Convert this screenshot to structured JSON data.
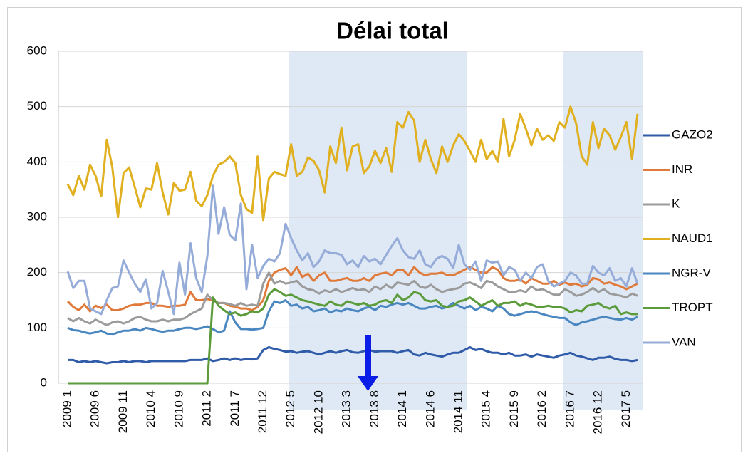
{
  "chart_data": {
    "type": "line",
    "title": "Délai total",
    "grid": true,
    "legend": "right",
    "ylim": [
      0,
      600
    ],
    "yticks": [
      0,
      100,
      200,
      300,
      400,
      500,
      600
    ],
    "categories": [
      "2009 1",
      null,
      null,
      null,
      null,
      "2009 6",
      null,
      null,
      null,
      null,
      "2009 11",
      null,
      null,
      null,
      null,
      "2010 4",
      null,
      null,
      null,
      null,
      "2010 9",
      null,
      null,
      null,
      null,
      "2011 2",
      null,
      null,
      null,
      null,
      "2011 7",
      null,
      null,
      null,
      null,
      "2011 12",
      null,
      null,
      null,
      null,
      "2012 5",
      null,
      null,
      null,
      null,
      "2012 10",
      null,
      null,
      null,
      null,
      "2013 3",
      null,
      null,
      null,
      null,
      "2013 8",
      null,
      null,
      null,
      null,
      "2014 1",
      null,
      null,
      null,
      null,
      "2014 6",
      null,
      null,
      null,
      null,
      "2014 11",
      null,
      null,
      null,
      null,
      "2015 4",
      null,
      null,
      null,
      null,
      "2015 9",
      null,
      null,
      null,
      null,
      "2016 2",
      null,
      null,
      null,
      null,
      "2016 7",
      null,
      null,
      null,
      null,
      "2016 12",
      null,
      null,
      null,
      null,
      "2017 5",
      null,
      null
    ],
    "series": [
      {
        "name": "GAZO2",
        "color": "#2f5ba8",
        "values": [
          42,
          42,
          38,
          40,
          38,
          40,
          38,
          36,
          38,
          38,
          40,
          38,
          40,
          40,
          38,
          40,
          40,
          40,
          40,
          40,
          40,
          40,
          42,
          42,
          42,
          45,
          40,
          42,
          45,
          42,
          45,
          42,
          44,
          43,
          45,
          60,
          65,
          62,
          60,
          57,
          58,
          55,
          57,
          58,
          55,
          52,
          55,
          58,
          55,
          58,
          60,
          56,
          55,
          58,
          60,
          57,
          58,
          58,
          58,
          55,
          58,
          60,
          52,
          50,
          55,
          52,
          50,
          48,
          52,
          55,
          55,
          60,
          65,
          60,
          62,
          58,
          55,
          55,
          52,
          55,
          50,
          50,
          52,
          48,
          52,
          50,
          48,
          46,
          50,
          52,
          55,
          50,
          48,
          45,
          42,
          46,
          46,
          48,
          44,
          42,
          42,
          40,
          42
        ]
      },
      {
        "name": "INR",
        "color": "#e07a3a",
        "values": [
          148,
          138,
          132,
          142,
          130,
          140,
          136,
          142,
          132,
          132,
          135,
          140,
          142,
          142,
          145,
          145,
          140,
          140,
          138,
          140,
          140,
          142,
          165,
          150,
          150,
          152,
          150,
          145,
          145,
          140,
          138,
          135,
          135,
          132,
          138,
          150,
          185,
          200,
          205,
          208,
          195,
          210,
          192,
          198,
          185,
          195,
          200,
          185,
          185,
          188,
          190,
          185,
          185,
          190,
          185,
          195,
          198,
          200,
          195,
          205,
          205,
          195,
          210,
          200,
          195,
          198,
          198,
          200,
          195,
          195,
          200,
          205,
          210,
          205,
          200,
          200,
          210,
          205,
          190,
          185,
          185,
          188,
          180,
          190,
          185,
          180,
          180,
          185,
          178,
          182,
          178,
          180,
          175,
          178,
          190,
          188,
          180,
          182,
          178,
          175,
          170,
          175,
          180
        ]
      },
      {
        "name": "K",
        "color": "#9b9b9b",
        "values": [
          118,
          112,
          118,
          112,
          108,
          115,
          110,
          105,
          110,
          112,
          108,
          112,
          118,
          120,
          115,
          112,
          112,
          115,
          112,
          115,
          115,
          118,
          125,
          130,
          135,
          160,
          150,
          145,
          145,
          143,
          140,
          145,
          140,
          142,
          140,
          180,
          200,
          180,
          185,
          180,
          182,
          185,
          175,
          170,
          168,
          162,
          168,
          165,
          170,
          165,
          168,
          172,
          168,
          170,
          165,
          175,
          170,
          178,
          172,
          182,
          180,
          178,
          185,
          175,
          172,
          178,
          170,
          165,
          168,
          170,
          172,
          180,
          182,
          178,
          172,
          185,
          182,
          175,
          170,
          165,
          165,
          168,
          165,
          175,
          168,
          170,
          165,
          160,
          160,
          170,
          165,
          158,
          160,
          165,
          172,
          165,
          170,
          162,
          160,
          158,
          155,
          162,
          158
        ]
      },
      {
        "name": "NAUD1",
        "color": "#e0b020",
        "values": [
          360,
          340,
          375,
          350,
          395,
          375,
          338,
          440,
          390,
          300,
          380,
          390,
          355,
          318,
          352,
          350,
          398,
          345,
          305,
          362,
          348,
          350,
          382,
          330,
          320,
          340,
          375,
          395,
          400,
          410,
          398,
          340,
          315,
          308,
          410,
          295,
          370,
          382,
          378,
          375,
          432,
          375,
          382,
          408,
          402,
          385,
          345,
          428,
          398,
          462,
          385,
          428,
          432,
          380,
          392,
          420,
          398,
          425,
          382,
          472,
          462,
          490,
          475,
          400,
          440,
          405,
          380,
          428,
          400,
          430,
          450,
          438,
          420,
          400,
          440,
          405,
          420,
          400,
          478,
          410,
          440,
          487,
          460,
          430,
          460,
          440,
          448,
          438,
          472,
          462,
          500,
          470,
          410,
          395,
          472,
          425,
          460,
          448,
          422,
          445,
          472,
          405,
          487
        ]
      },
      {
        "name": "NGR-V",
        "color": "#4a86c0",
        "values": [
          100,
          96,
          95,
          92,
          90,
          92,
          95,
          90,
          88,
          92,
          95,
          95,
          98,
          95,
          100,
          98,
          95,
          93,
          95,
          95,
          98,
          100,
          100,
          98,
          100,
          103,
          98,
          92,
          95,
          130,
          110,
          98,
          98,
          97,
          98,
          100,
          130,
          148,
          145,
          150,
          140,
          142,
          135,
          138,
          130,
          132,
          135,
          128,
          132,
          130,
          135,
          132,
          130,
          135,
          138,
          132,
          140,
          138,
          142,
          145,
          142,
          145,
          140,
          135,
          135,
          138,
          140,
          135,
          138,
          145,
          140,
          135,
          140,
          132,
          138,
          135,
          130,
          140,
          135,
          125,
          122,
          125,
          128,
          130,
          128,
          125,
          122,
          120,
          118,
          118,
          110,
          105,
          110,
          112,
          115,
          118,
          120,
          118,
          116,
          115,
          118,
          115,
          120
        ]
      },
      {
        "name": "TROPT",
        "color": "#5b9b3a",
        "values": [
          0,
          0,
          0,
          0,
          0,
          0,
          0,
          0,
          0,
          0,
          0,
          0,
          0,
          0,
          0,
          0,
          0,
          0,
          0,
          0,
          0,
          0,
          0,
          0,
          0,
          0,
          155,
          140,
          132,
          125,
          128,
          122,
          125,
          130,
          128,
          135,
          160,
          170,
          165,
          158,
          160,
          155,
          150,
          148,
          145,
          142,
          140,
          148,
          142,
          140,
          148,
          145,
          142,
          145,
          140,
          142,
          148,
          150,
          145,
          160,
          150,
          155,
          165,
          162,
          150,
          148,
          150,
          140,
          138,
          140,
          148,
          150,
          155,
          148,
          140,
          145,
          150,
          140,
          145,
          145,
          148,
          140,
          145,
          142,
          138,
          138,
          140,
          138,
          138,
          135,
          128,
          132,
          130,
          140,
          142,
          145,
          138,
          135,
          140,
          125,
          128,
          125,
          125
        ]
      },
      {
        "name": "VAN",
        "color": "#96acd8",
        "values": [
          202,
          172,
          185,
          185,
          135,
          130,
          125,
          150,
          172,
          175,
          222,
          200,
          180,
          165,
          188,
          135,
          145,
          203,
          165,
          125,
          218,
          160,
          253,
          190,
          165,
          230,
          357,
          270,
          318,
          268,
          258,
          325,
          170,
          250,
          190,
          212,
          225,
          220,
          235,
          288,
          262,
          240,
          222,
          235,
          210,
          220,
          240,
          235,
          235,
          232,
          215,
          222,
          210,
          230,
          220,
          225,
          215,
          232,
          248,
          262,
          240,
          228,
          225,
          240,
          215,
          210,
          225,
          230,
          225,
          208,
          250,
          215,
          205,
          220,
          185,
          222,
          218,
          220,
          195,
          210,
          205,
          185,
          200,
          190,
          210,
          215,
          185,
          175,
          180,
          185,
          200,
          195,
          180,
          180,
          212,
          200,
          195,
          208,
          185,
          190,
          175,
          208,
          180
        ]
      }
    ]
  }
}
